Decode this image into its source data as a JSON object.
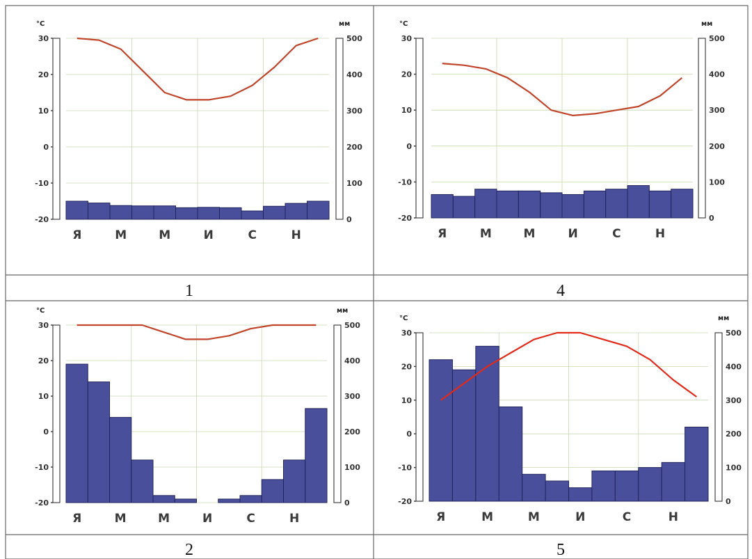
{
  "captions": [
    "1",
    "4",
    "2",
    "5"
  ],
  "colors": {
    "precip_fill": "#4a4f9c",
    "precip_edge": "#20245c",
    "temp_line_a": "#c0442a",
    "temp_line_b": "#e02a1a",
    "grid": "#c8d8b0",
    "border": "#666666"
  },
  "chart_data": [
    {
      "id": "1",
      "type": "bar-line climate diagram",
      "temp_unit": "°C",
      "precip_unit": "мм",
      "temp_ticks": [
        "30",
        "20",
        "10",
        "0",
        "-10",
        "-20"
      ],
      "precip_ticks": [
        "500",
        "400",
        "300",
        "200",
        "100",
        "0"
      ],
      "temp_ylim": [
        -20,
        30
      ],
      "precip_ylim": [
        0,
        500
      ],
      "month_labels": [
        "Я",
        "М",
        "М",
        "И",
        "С",
        "Н"
      ],
      "temperature": [
        30,
        29.5,
        27,
        21,
        15,
        13,
        13,
        14,
        17,
        22,
        28,
        30
      ],
      "precipitation": [
        50,
        45,
        38,
        37,
        37,
        32,
        33,
        32,
        23,
        36,
        44,
        50
      ]
    },
    {
      "id": "4",
      "type": "bar-line climate diagram",
      "temp_unit": "°C",
      "precip_unit": "мм",
      "temp_ticks": [
        "30",
        "20",
        "10",
        "0",
        "-10",
        "-20"
      ],
      "precip_ticks": [
        "500",
        "400",
        "300",
        "200",
        "100",
        "0"
      ],
      "temp_ylim": [
        -20,
        30
      ],
      "precip_ylim": [
        0,
        500
      ],
      "month_labels": [
        "Я",
        "М",
        "М",
        "И",
        "С",
        "Н"
      ],
      "temperature": [
        23,
        22.5,
        21.5,
        19,
        15,
        10,
        8.5,
        9,
        10,
        11,
        14,
        19
      ],
      "precipitation": [
        65,
        60,
        80,
        75,
        75,
        70,
        65,
        75,
        80,
        90,
        75,
        80
      ]
    },
    {
      "id": "2",
      "type": "bar-line climate diagram",
      "temp_unit": "°C",
      "precip_unit": "мм",
      "temp_ticks": [
        "30",
        "20",
        "10",
        "0",
        "-10",
        "-20"
      ],
      "precip_ticks": [
        "500",
        "400",
        "300",
        "200",
        "100",
        "0"
      ],
      "temp_ylim": [
        -20,
        30
      ],
      "precip_ylim": [
        0,
        500
      ],
      "month_labels": [
        "Я",
        "М",
        "М",
        "И",
        "С",
        "Н"
      ],
      "temperature": [
        30,
        30,
        30,
        30,
        28,
        26,
        26,
        27,
        29,
        30,
        30,
        30
      ],
      "precipitation": [
        390,
        340,
        240,
        120,
        20,
        10,
        0,
        10,
        20,
        65,
        120,
        265
      ]
    },
    {
      "id": "5",
      "type": "bar-line climate diagram",
      "temp_unit": "°C",
      "precip_unit": "мм",
      "temp_ticks": [
        "30",
        "20",
        "10",
        "0",
        "-10",
        "-20"
      ],
      "precip_ticks": [
        "500",
        "400",
        "300",
        "200",
        "100",
        "0"
      ],
      "temp_ylim": [
        -20,
        30
      ],
      "precip_ylim": [
        0,
        500
      ],
      "month_labels": [
        "Я",
        "М",
        "М",
        "И",
        "С",
        "Н"
      ],
      "temperature": [
        10,
        15,
        20,
        24,
        28,
        30,
        30,
        28,
        26,
        22,
        16,
        11
      ],
      "precipitation": [
        420,
        390,
        460,
        280,
        80,
        60,
        40,
        90,
        90,
        100,
        115,
        220
      ]
    }
  ]
}
